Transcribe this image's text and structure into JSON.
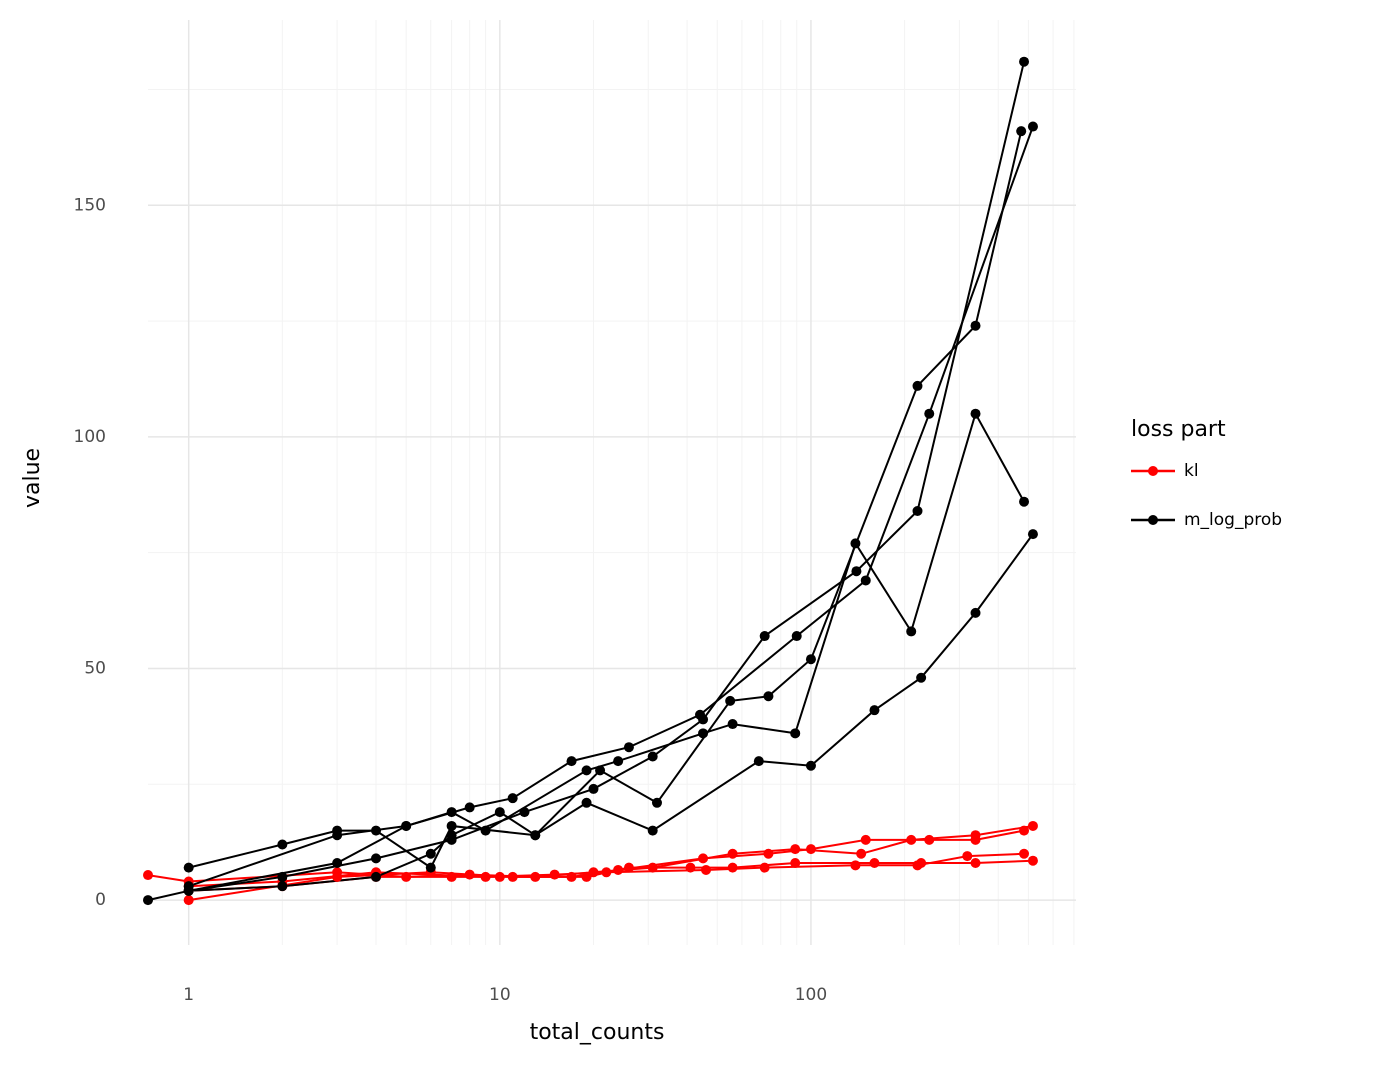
{
  "chart_data": {
    "type": "line",
    "x_label": "total_counts",
    "y_label": "value",
    "xscale": "log",
    "xlim": [
      0.74,
      711
    ],
    "ylim": [
      -9.7,
      190
    ],
    "xticks": [
      1,
      10,
      100
    ],
    "xminor": [
      2,
      3,
      4,
      5,
      6,
      7,
      8,
      9,
      20,
      30,
      40,
      50,
      60,
      70,
      80,
      90,
      200,
      300,
      400,
      500,
      600,
      700
    ],
    "yticks": [
      0,
      50,
      100,
      150
    ],
    "yminor": [
      25,
      75,
      125,
      175
    ],
    "grid": true,
    "legend_title": "loss part",
    "series": [
      {
        "name": "kl",
        "color": "#ff0000",
        "lines": [
          {
            "x": [
              0.74,
              1,
              3,
              5,
              8,
              13,
              20,
              31,
              56,
              89,
              145,
              210,
              338,
              517
            ],
            "values": [
              5.4,
              4,
              6,
              5,
              5.5,
              5,
              6,
              7,
              10,
              11,
              10,
              13,
              14,
              16
            ]
          },
          {
            "x": [
              1,
              2,
              4,
              7,
              10,
              17,
              24,
              45,
              73,
              100,
              150,
              240,
              338,
              484
            ],
            "values": [
              2,
              3,
              5,
              5,
              5,
              5,
              6.5,
              9,
              10,
              11,
              13,
              13,
              13,
              15
            ]
          },
          {
            "x": [
              1,
              2,
              4,
              9,
              15,
              22,
              46,
              71,
              139,
              220,
              318,
              484
            ],
            "values": [
              3,
              4,
              6,
              5,
              5.5,
              6,
              6.5,
              7,
              7.5,
              7.5,
              9.5,
              10
            ]
          },
          {
            "x": [
              1,
              3,
              6,
              11,
              19,
              26,
              41,
              56,
              89,
              160,
              226,
              338,
              517
            ],
            "values": [
              0,
              5,
              6,
              5,
              5,
              7,
              7,
              7,
              8,
              8,
              8,
              8,
              8.5
            ]
          }
        ]
      },
      {
        "name": "m_log_prob",
        "color": "#000000",
        "lines": [
          {
            "x": [
              1,
              2,
              4,
              7,
              12,
              20,
              31,
              45,
              71,
              140,
              220,
              484
            ],
            "values": [
              2,
              5,
              9,
              13,
              19,
              24,
              31,
              39,
              57,
              71,
              84,
              181
            ]
          },
          {
            "x": [
              1,
              3,
              5,
              8,
              11,
              17,
              26,
              44,
              90,
              150,
              240,
              517
            ],
            "values": [
              3,
              14,
              16,
              20,
              22,
              30,
              33,
              40,
              57,
              69,
              105,
              167
            ]
          },
          {
            "x": [
              1,
              2,
              3,
              4,
              6,
              7,
              13,
              21,
              32,
              55,
              73,
              100,
              220,
              338,
              474
            ],
            "values": [
              7,
              12,
              15,
              15,
              7,
              16,
              14,
              28,
              21,
              43,
              44,
              52,
              111,
              124,
              166
            ]
          },
          {
            "x": [
              0.74,
              1,
              3,
              5,
              7,
              9,
              19,
              24,
              45,
              56,
              89,
              139,
              210,
              338,
              484
            ],
            "values": [
              0,
              2,
              8,
              16,
              19,
              15,
              28,
              30,
              36,
              38,
              36,
              77,
              58,
              105,
              86
            ]
          },
          {
            "x": [
              1,
              2,
              4,
              6,
              7,
              10,
              13,
              19,
              31,
              68,
              100,
              160,
              226,
              338,
              517
            ],
            "values": [
              2,
              3,
              5,
              10,
              14,
              19,
              14,
              21,
              15,
              30,
              29,
              41,
              48,
              62,
              79
            ]
          }
        ]
      }
    ]
  }
}
